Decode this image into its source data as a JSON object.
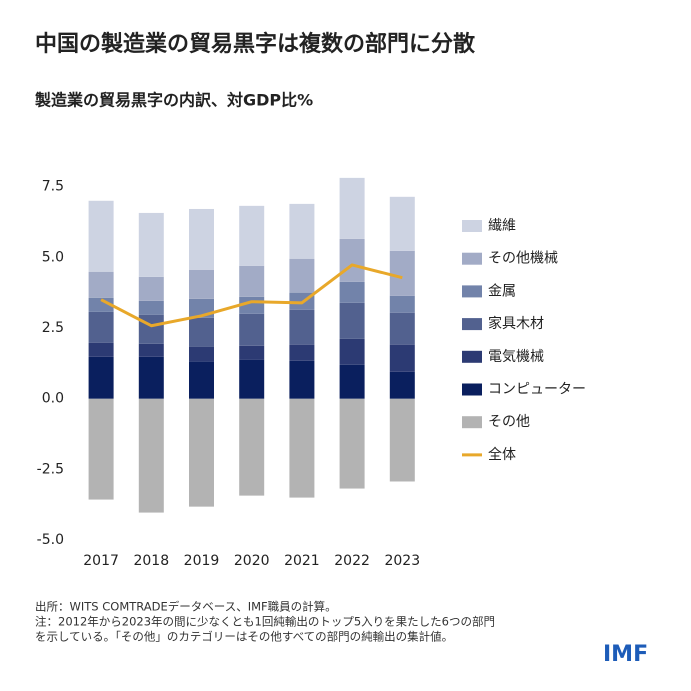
{
  "chart_data": {
    "type": "bar",
    "stacked": true,
    "title": "中国の製造業の貿易黒字は複数の部門に分散",
    "subtitle": "製造業の貿易黒字の内訳、対GDP比%",
    "categories": [
      "2017",
      "2018",
      "2019",
      "2020",
      "2021",
      "2022",
      "2023"
    ],
    "series": [
      {
        "name": "繊維",
        "color": "#cdd3e2",
        "values": [
          2.51,
          2.26,
          2.15,
          2.12,
          1.94,
          2.16,
          1.91
        ]
      },
      {
        "name": "その他機械",
        "color": "#a2abc6",
        "values": [
          0.92,
          0.85,
          1.03,
          1.1,
          1.2,
          1.52,
          1.59
        ]
      },
      {
        "name": "金属",
        "color": "#7283aa",
        "values": [
          0.5,
          0.49,
          0.67,
          0.6,
          0.61,
          0.74,
          0.6
        ]
      },
      {
        "name": "家具木材",
        "color": "#52618f",
        "values": [
          1.09,
          1.03,
          1.02,
          1.13,
          1.23,
          1.27,
          1.13
        ]
      },
      {
        "name": "電気機械",
        "color": "#2c3a73",
        "values": [
          0.5,
          0.46,
          0.53,
          0.49,
          0.57,
          0.92,
          0.96
        ]
      },
      {
        "name": "コンピューター",
        "color": "#0a1f5e",
        "values": [
          1.48,
          1.48,
          1.31,
          1.38,
          1.34,
          1.2,
          0.95
        ]
      },
      {
        "name": "その他",
        "color": "#b3b3b3",
        "values": [
          -3.57,
          -4.03,
          -3.82,
          -3.43,
          -3.5,
          -3.18,
          -2.93
        ]
      },
      {
        "name": "全体",
        "color": "#e8a82a",
        "type": "line",
        "values": [
          3.5,
          2.58,
          2.93,
          3.43,
          3.39,
          4.73,
          4.28
        ]
      }
    ],
    "ylim": [
      -5,
      8
    ],
    "yticks": [
      {
        "value": -5,
        "label": "-5.0"
      },
      -2.5,
      {
        "value": 0,
        "label": "0.0"
      },
      2.5,
      {
        "value": 5,
        "label": "5.0"
      },
      7.5
    ],
    "grid": false,
    "legend": "right"
  },
  "notes": [
    "出所：WITS COMTRADEデータベース、IMF職員の計算。",
    "注：2012年から2023年の間に少なくとも1回純輸出のトップ5入りを果たした6つの部門",
    "を示している。「その他」のカテゴリーはその他すべての部門の純輸出の集計値。"
  ],
  "logo": "IMF"
}
